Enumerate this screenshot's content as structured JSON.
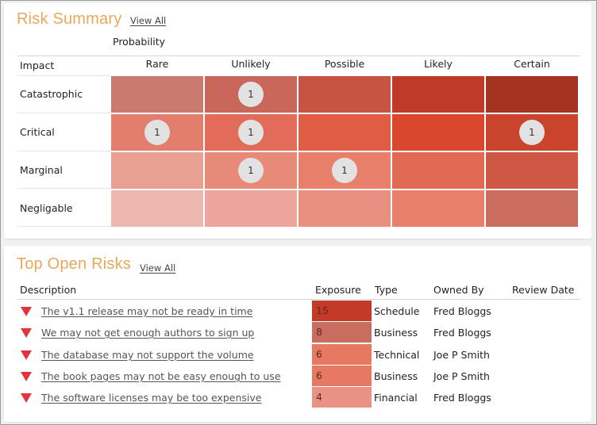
{
  "risk_summary": {
    "title": "Risk Summary",
    "view_all": "View All",
    "probability_label": "Probability",
    "impact_label": "Impact",
    "columns": [
      "Rare",
      "Unlikely",
      "Possible",
      "Likely",
      "Certain"
    ],
    "rows": [
      "Catastrophic",
      "Critical",
      "Marginal",
      "Negligable"
    ],
    "colors": [
      [
        "#c87b6e",
        "#c9675b",
        "#c65443",
        "#bf3b28",
        "#a53323"
      ],
      [
        "#e27e6b",
        "#e26b59",
        "#e05d45",
        "#d9472d",
        "#c9432d"
      ],
      [
        "#e8a092",
        "#e88a78",
        "#e77f6a",
        "#e06a52",
        "#cf5845"
      ],
      [
        "#ecb7ae",
        "#eda49a",
        "#e98f7f",
        "#e77f6b",
        "#ca6d5e"
      ]
    ],
    "counts": [
      [
        "",
        "1",
        "",
        "",
        ""
      ],
      [
        "1",
        "1",
        "",
        "",
        "1"
      ],
      [
        "",
        "1",
        "1",
        "",
        ""
      ],
      [
        "",
        "",
        "",
        "",
        ""
      ]
    ]
  },
  "top_open_risks": {
    "title": "Top Open Risks",
    "view_all": "View All",
    "headers": {
      "description": "Description",
      "exposure": "Exposure",
      "type": "Type",
      "owned_by": "Owned By",
      "review_date": "Review Date"
    },
    "items": [
      {
        "description": "The v1.1 release may not be ready in time",
        "exposure": "15",
        "exposure_color": "#c33b27",
        "type": "Schedule",
        "owner": "Fred Bloggs"
      },
      {
        "description": "We may not get enough authors to sign up",
        "exposure": "8",
        "exposure_color": "#c96d60",
        "type": "Business",
        "owner": "Fred Bloggs"
      },
      {
        "description": "The database may not support the volume",
        "exposure": "6",
        "exposure_color": "#e77861",
        "type": "Technical",
        "owner": "Joe P Smith"
      },
      {
        "description": "The book pages may not be easy enough to use",
        "exposure": "6",
        "exposure_color": "#e77861",
        "type": "Business",
        "owner": "Joe P Smith"
      },
      {
        "description": "The software licenses may be too expensive",
        "exposure": "4",
        "exposure_color": "#e99283",
        "type": "Financial",
        "owner": "Fred Bloggs"
      }
    ]
  }
}
